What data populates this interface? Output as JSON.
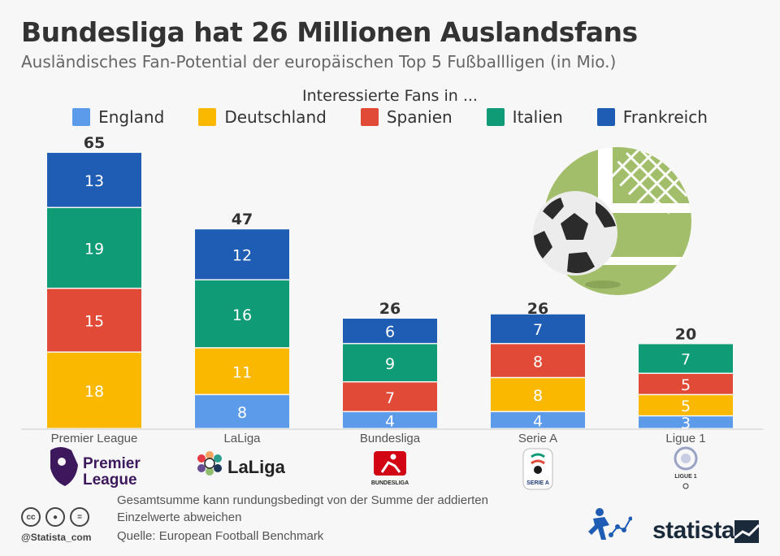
{
  "title": "Bundesliga hat 26 Millionen Auslandsfans",
  "subtitle": "Ausländisches Fan-Potential der europäischen Top 5 Fußballligen (in Mio.)",
  "legend_title": "Interessierte Fans in ...",
  "note": "Gesamtsumme kann rundungsbedingt von der Summe der addierten Einzelwerte abweichen",
  "source": "Quelle: European Football Benchmark",
  "handle": "@Statista_com",
  "brand": "statista",
  "cc_icons": [
    "cc-icon",
    "by-icon",
    "nd-icon"
  ],
  "logos": {
    "premier_league": "Premier League",
    "laliga": "LaLiga",
    "bundesliga": "BUNDESLIGA",
    "serie_a": "SERIE A",
    "ligue1": "LIGUE 1"
  },
  "chart_data": {
    "type": "bar",
    "stacked": true,
    "categories": [
      "Premier League",
      "LaLiga",
      "Bundesliga",
      "Serie A",
      "Ligue 1"
    ],
    "totals": [
      65,
      47,
      26,
      26,
      20
    ],
    "series": [
      {
        "name": "England",
        "color": "#5b9bea",
        "values": [
          null,
          8,
          4,
          4,
          3
        ]
      },
      {
        "name": "Deutschland",
        "color": "#fbb800",
        "values": [
          18,
          11,
          null,
          8,
          5
        ]
      },
      {
        "name": "Spanien",
        "color": "#e04a37",
        "values": [
          15,
          null,
          7,
          8,
          5
        ]
      },
      {
        "name": "Italien",
        "color": "#0e9b75",
        "values": [
          19,
          16,
          9,
          null,
          7
        ]
      },
      {
        "name": "Frankreich",
        "color": "#1f5db5",
        "values": [
          13,
          12,
          6,
          7,
          null
        ]
      }
    ],
    "legend_position": "top",
    "grid": false
  }
}
